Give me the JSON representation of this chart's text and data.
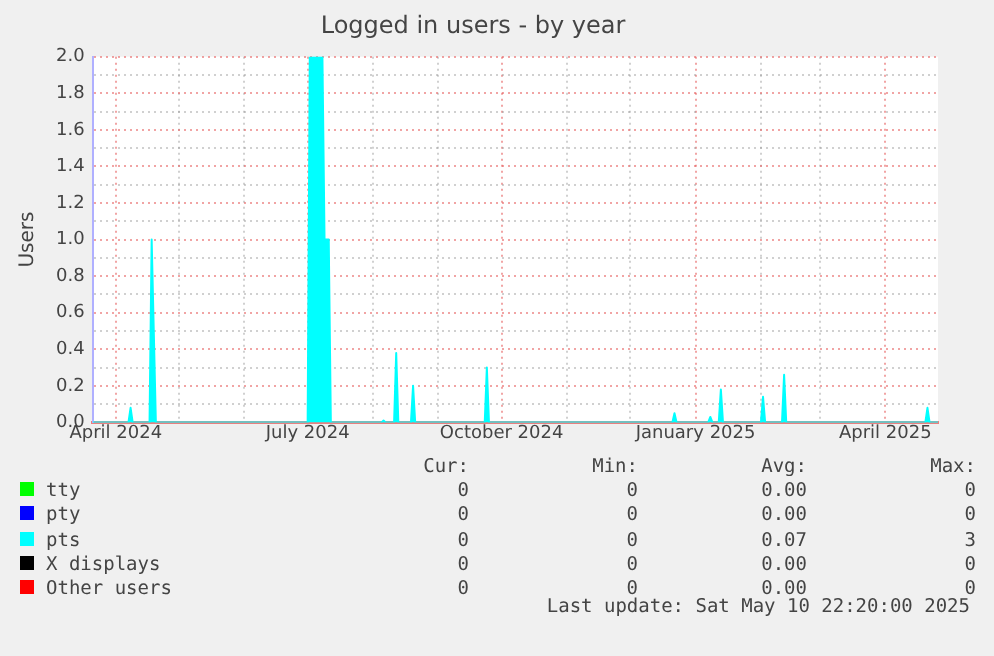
{
  "chart_data": {
    "type": "area",
    "title": "Logged in users - by year",
    "ylabel": "Users",
    "grid": true,
    "legend": "bottom",
    "marker": "none",
    "x": [
      "2024-03-21",
      "2024-04-07",
      "2024-04-08",
      "2024-04-09",
      "2024-04-17",
      "2024-04-18",
      "2024-04-19",
      "2024-04-20",
      "2024-07-01",
      "2024-07-02",
      "2024-07-08",
      "2024-07-09",
      "2024-07-11",
      "2024-07-12",
      "2024-08-05",
      "2024-08-06",
      "2024-08-07",
      "2024-08-11",
      "2024-08-12",
      "2024-08-13",
      "2024-08-19",
      "2024-08-20",
      "2024-08-21",
      "2024-09-23",
      "2024-09-24",
      "2024-09-25",
      "2024-12-21",
      "2024-12-22",
      "2024-12-23",
      "2025-01-07",
      "2025-01-08",
      "2025-01-09",
      "2025-01-12",
      "2025-01-13",
      "2025-01-14",
      "2025-02-01",
      "2025-02-02",
      "2025-02-03",
      "2025-02-11",
      "2025-02-12",
      "2025-02-13",
      "2025-04-20",
      "2025-04-21",
      "2025-04-22",
      "2025-04-26"
    ],
    "series": [
      {
        "name": "tty",
        "color": "#00ff00",
        "values": [
          null,
          null,
          null,
          null,
          null,
          null,
          null,
          null,
          null,
          null,
          null,
          null,
          null,
          null,
          null,
          null,
          null,
          null,
          null,
          null,
          null,
          null,
          null,
          null,
          null,
          null,
          null,
          null,
          null,
          null,
          null,
          null,
          null,
          null,
          null,
          null,
          null,
          null,
          null,
          null,
          null,
          null,
          null,
          null,
          null
        ]
      },
      {
        "name": "pty",
        "color": "#0000ff",
        "values": [
          null,
          null,
          null,
          null,
          null,
          null,
          null,
          null,
          null,
          null,
          null,
          null,
          null,
          null,
          null,
          null,
          null,
          null,
          null,
          null,
          null,
          null,
          null,
          null,
          null,
          null,
          null,
          null,
          null,
          null,
          null,
          null,
          null,
          null,
          null,
          null,
          null,
          null,
          null,
          null,
          null,
          null,
          null,
          null,
          null
        ]
      },
      {
        "name": "pts",
        "color": "#00ffff",
        "values": [
          0,
          0,
          0.08,
          0,
          0,
          1.0,
          0.5,
          0,
          0,
          2.0,
          2.0,
          1.0,
          1.0,
          0,
          0,
          0.01,
          0,
          0,
          0.38,
          0,
          0,
          0.2,
          0,
          0,
          0.3,
          0,
          0,
          0.05,
          0,
          0,
          0.03,
          0,
          0,
          0.18,
          0,
          0,
          0.14,
          0,
          0,
          0.26,
          0,
          0,
          0.08,
          0,
          0
        ]
      },
      {
        "name": "X displays",
        "color": "#000000",
        "values": [
          null,
          null,
          null,
          null,
          null,
          null,
          null,
          null,
          null,
          null,
          null,
          null,
          null,
          null,
          null,
          null,
          null,
          null,
          null,
          null,
          null,
          null,
          null,
          null,
          null,
          null,
          null,
          null,
          null,
          null,
          null,
          null,
          null,
          null,
          null,
          null,
          null,
          null,
          null,
          null,
          null,
          null,
          null,
          null,
          null
        ]
      },
      {
        "name": "Other users",
        "color": "#ff0000",
        "values": [
          null,
          null,
          null,
          null,
          null,
          null,
          null,
          null,
          null,
          null,
          null,
          null,
          null,
          null,
          null,
          null,
          null,
          null,
          null,
          null,
          null,
          null,
          null,
          null,
          null,
          null,
          null,
          null,
          null,
          null,
          null,
          null,
          null,
          null,
          null,
          null,
          null,
          null,
          null,
          null,
          null,
          null,
          null,
          null,
          null
        ]
      }
    ],
    "xlim": [
      "2024-03-21",
      "2025-04-26"
    ],
    "xticks": [
      {
        "value": "2024-04-01",
        "label": "April 2024"
      },
      {
        "value": "2024-05-01",
        "label": null
      },
      {
        "value": "2024-06-01",
        "label": null
      },
      {
        "value": "2024-07-01",
        "label": "July 2024"
      },
      {
        "value": "2024-08-01",
        "label": null
      },
      {
        "value": "2024-09-01",
        "label": null
      },
      {
        "value": "2024-10-01",
        "label": "October 2024"
      },
      {
        "value": "2024-11-01",
        "label": null
      },
      {
        "value": "2024-12-01",
        "label": null
      },
      {
        "value": "2025-01-01",
        "label": "January 2025"
      },
      {
        "value": "2025-02-01",
        "label": null
      },
      {
        "value": "2025-03-01",
        "label": null
      },
      {
        "value": "2025-04-01",
        "label": "April 2025"
      }
    ],
    "ylim": [
      0,
      2.0
    ],
    "yticks": [
      {
        "value": 0,
        "label": "0.0"
      },
      {
        "value": 0.1,
        "label": null
      },
      {
        "value": 0.2,
        "label": "0.2"
      },
      {
        "value": 0.3,
        "label": null
      },
      {
        "value": 0.4,
        "label": "0.4"
      },
      {
        "value": 0.5,
        "label": null
      },
      {
        "value": 0.6,
        "label": "0.6"
      },
      {
        "value": 0.7,
        "label": null
      },
      {
        "value": 0.8,
        "label": "0.8"
      },
      {
        "value": 0.9,
        "label": null
      },
      {
        "value": 1.0,
        "label": "1.0"
      },
      {
        "value": 1.1,
        "label": null
      },
      {
        "value": 1.2,
        "label": "1.2"
      },
      {
        "value": 1.3,
        "label": null
      },
      {
        "value": 1.4,
        "label": "1.4"
      },
      {
        "value": 1.5,
        "label": null
      },
      {
        "value": 1.6,
        "label": "1.6"
      },
      {
        "value": 1.7,
        "label": null
      },
      {
        "value": 1.8,
        "label": "1.8"
      },
      {
        "value": 1.9,
        "label": null
      },
      {
        "value": 2.0,
        "label": "2.0"
      }
    ],
    "annotations": [
      "Cur:",
      "Min:",
      "Avg:",
      "Max:",
      "0",
      "0",
      "0.00",
      "0",
      "0",
      "0",
      "0.00",
      "0",
      "0",
      "0",
      "0.07",
      "3",
      "0",
      "0",
      "0.00",
      "0",
      "0",
      "0",
      "0.00",
      "0",
      "Last update: Sat May 10 22:20:00 2025"
    ]
  }
}
